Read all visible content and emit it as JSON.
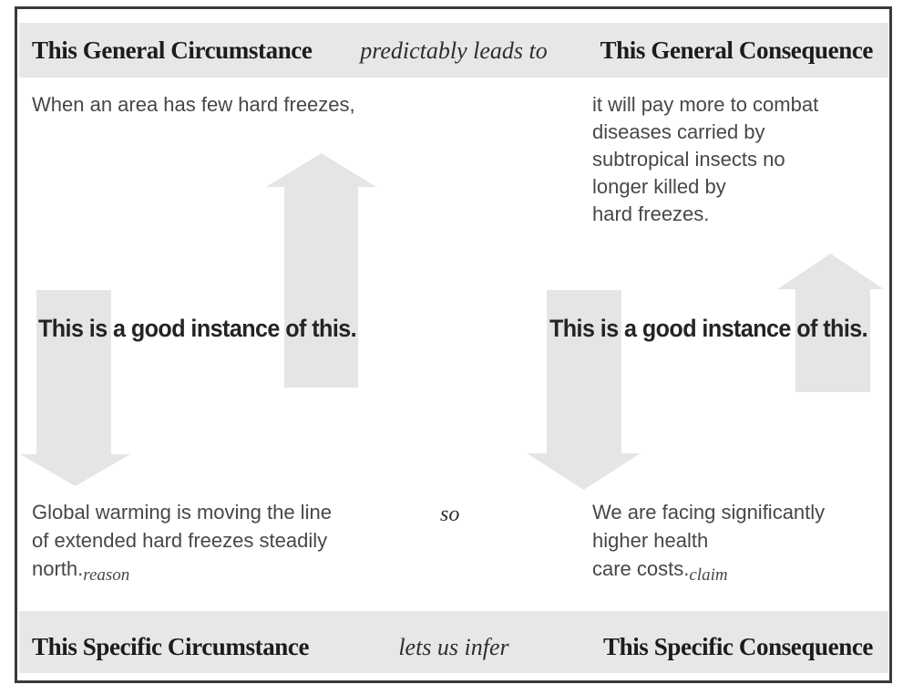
{
  "top_bar": {
    "left": "This General Circumstance",
    "connector": "predictably leads to",
    "right": "This General Consequence"
  },
  "general": {
    "circumstance": "When an area has few hard freezes,",
    "consequence_lines": [
      "it will pay more to combat",
      "diseases carried by",
      "subtropical insects no",
      "longer killed by",
      "hard freezes."
    ]
  },
  "instance_labels": {
    "left": "This is a good instance of this.",
    "right": "This is a good instance of this."
  },
  "specific": {
    "circumstance_lines": [
      "Global warming is moving the line",
      "of extended hard freezes steadily",
      "north."
    ],
    "circumstance_tag": "reason",
    "connector": "so",
    "consequence_lines": [
      "We are facing significantly",
      "higher health",
      "care costs."
    ],
    "consequence_tag": "claim"
  },
  "bottom_bar": {
    "left": "This Specific Circumstance",
    "connector": "lets us infer",
    "right": "This Specific Consequence"
  },
  "icons": {
    "up_arrow": "up-arrow",
    "down_arrow": "down-arrow"
  },
  "colors": {
    "bar_background": "#e8e7e7",
    "arrow_fill": "#e6e5e5",
    "border": "#3a3a3a",
    "body_text": "#474747",
    "heading_text": "#1c1c1c"
  }
}
